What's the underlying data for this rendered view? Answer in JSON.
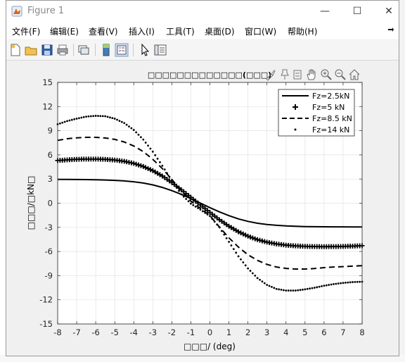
{
  "window": {
    "title": "Figure 1",
    "minimize_label": "—",
    "maximize_label": "☐",
    "close_label": "✕"
  },
  "menu": {
    "items": [
      {
        "label": "文件(F)"
      },
      {
        "label": "编辑(E)"
      },
      {
        "label": "查看(V)"
      },
      {
        "label": "插入(I)"
      },
      {
        "label": "工具(T)"
      },
      {
        "label": "桌面(D)"
      },
      {
        "label": "窗口(W)"
      },
      {
        "label": "帮助(H)"
      }
    ],
    "overflow_icon": "arrow-icon"
  },
  "toolbar": {
    "icons": [
      "new-figure-icon",
      "open-file-icon",
      "save-icon",
      "print-icon",
      "link-icon",
      "colorbar-icon",
      "legend-icon",
      "pointer-icon",
      "property-editor-icon"
    ]
  },
  "axes_toolbar": {
    "icons": [
      "brush-icon",
      "data-tips-icon",
      "rotate-icon",
      "pan-icon",
      "zoom-in-icon",
      "zoom-out-icon",
      "home-icon"
    ]
  },
  "colors": {
    "plot_background": "#ffffff",
    "figure_background": "#f0f0f0",
    "grid": "#e3e3e3",
    "lines": "#000000"
  },
  "chart_data": {
    "type": "line",
    "title": "□□□□□□□□□□□□□(□□□)",
    "xlabel": "□□□/ (deg)",
    "ylabel": "□□□/□kN□",
    "xlim": [
      -8,
      8
    ],
    "ylim": [
      -15,
      15
    ],
    "xticks": [
      -8,
      -7,
      -6,
      -5,
      -4,
      -3,
      -2,
      -1,
      0,
      1,
      2,
      3,
      4,
      5,
      6,
      7,
      8
    ],
    "yticks": [
      15,
      12,
      9,
      6,
      3,
      0,
      -3,
      -6,
      -9,
      -12,
      -15
    ],
    "grid": true,
    "legend_position": "top-right",
    "x": [
      -8,
      -7.5,
      -7,
      -6.5,
      -6,
      -5.5,
      -5,
      -4.5,
      -4,
      -3.5,
      -3,
      -2.5,
      -2,
      -1.5,
      -1,
      -0.5,
      0,
      0.5,
      1,
      1.5,
      2,
      2.5,
      3,
      3.5,
      4,
      4.5,
      5,
      5.5,
      6,
      6.5,
      7,
      7.5,
      8
    ],
    "series": [
      {
        "name": "Fz=2.5kN",
        "style": "solid",
        "values": [
          2.95,
          2.95,
          2.94,
          2.93,
          2.91,
          2.88,
          2.83,
          2.76,
          2.66,
          2.5,
          2.27,
          1.96,
          1.56,
          1.09,
          0.56,
          0.01,
          -0.55,
          -1.08,
          -1.55,
          -1.95,
          -2.26,
          -2.49,
          -2.65,
          -2.75,
          -2.82,
          -2.87,
          -2.9,
          -2.92,
          -2.93,
          -2.94,
          -2.94,
          -2.95,
          -2.95
        ]
      },
      {
        "name": "Fz=5 kN",
        "style": "plus",
        "values": [
          5.3,
          5.38,
          5.45,
          5.48,
          5.48,
          5.45,
          5.36,
          5.2,
          4.94,
          4.56,
          4.04,
          3.37,
          2.56,
          1.66,
          0.72,
          -0.22,
          -1.15,
          -2.05,
          -2.86,
          -3.55,
          -4.1,
          -4.53,
          -4.84,
          -5.06,
          -5.21,
          -5.3,
          -5.36,
          -5.39,
          -5.4,
          -5.39,
          -5.37,
          -5.33,
          -5.28
        ]
      },
      {
        "name": "Fz=8.5 kN",
        "style": "dashed",
        "values": [
          7.8,
          8.0,
          8.12,
          8.18,
          8.18,
          8.1,
          7.92,
          7.6,
          7.1,
          6.4,
          5.45,
          4.3,
          2.95,
          1.55,
          0.25,
          -0.65,
          -1.55,
          -2.95,
          -4.3,
          -5.45,
          -6.4,
          -7.1,
          -7.6,
          -7.92,
          -8.1,
          -8.18,
          -8.18,
          -8.12,
          -8.0,
          -7.92,
          -7.88,
          -7.82,
          -7.76
        ]
      },
      {
        "name": "Fz=14 kN",
        "style": "dotted",
        "values": [
          9.8,
          10.2,
          10.5,
          10.75,
          10.85,
          10.8,
          10.5,
          9.95,
          9.1,
          7.9,
          6.4,
          4.65,
          2.8,
          1.1,
          -0.05,
          -0.8,
          -1.6,
          -3.0,
          -4.8,
          -6.6,
          -8.1,
          -9.3,
          -10.15,
          -10.65,
          -10.85,
          -10.85,
          -10.7,
          -10.5,
          -10.25,
          -10.05,
          -9.9,
          -9.8,
          -9.75
        ]
      }
    ]
  }
}
